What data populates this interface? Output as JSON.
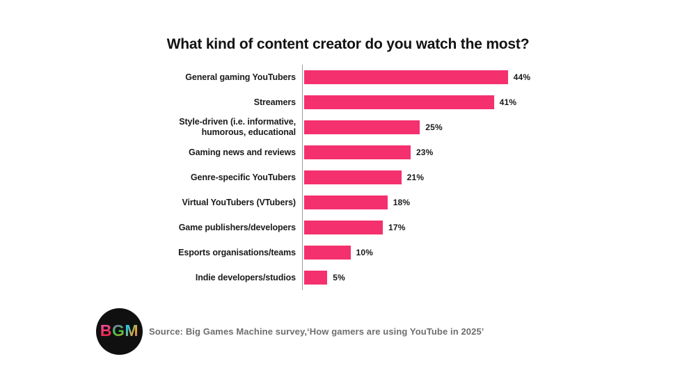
{
  "chart_data": {
    "type": "bar",
    "orientation": "horizontal",
    "title": "What kind of content creator do you watch the most?",
    "categories": [
      "General gaming YouTubers",
      "Streamers",
      "Style-driven (i.e. informative,\nhumorous, educational",
      "Gaming news and reviews",
      "Genre-specific YouTubers",
      "Virtual YouTubers (VTubers)",
      "Game publishers/developers",
      "Esports organisations/teams",
      "Indie developers/studios"
    ],
    "values": [
      44,
      41,
      25,
      23,
      21,
      18,
      17,
      10,
      5
    ],
    "value_labels": [
      "44%",
      "41%",
      "25%",
      "23%",
      "21%",
      "18%",
      "17%",
      "10%",
      "5%"
    ],
    "unit": "%",
    "xlim": [
      0,
      47
    ],
    "bar_color": "#f4306f",
    "grid": false,
    "legend": "none"
  },
  "footer": {
    "logo_text": "BGM",
    "logo_letters": [
      "B",
      "G",
      "M"
    ],
    "source_text": "Source: Big Games Machine survey,‘How gamers are using YouTube in 2025’"
  },
  "colors": {
    "bar": "#f4306f",
    "axis": "#9a9a9a",
    "title_text": "#121212",
    "source_text": "#6e6e6e",
    "logo_background": "#101010"
  }
}
